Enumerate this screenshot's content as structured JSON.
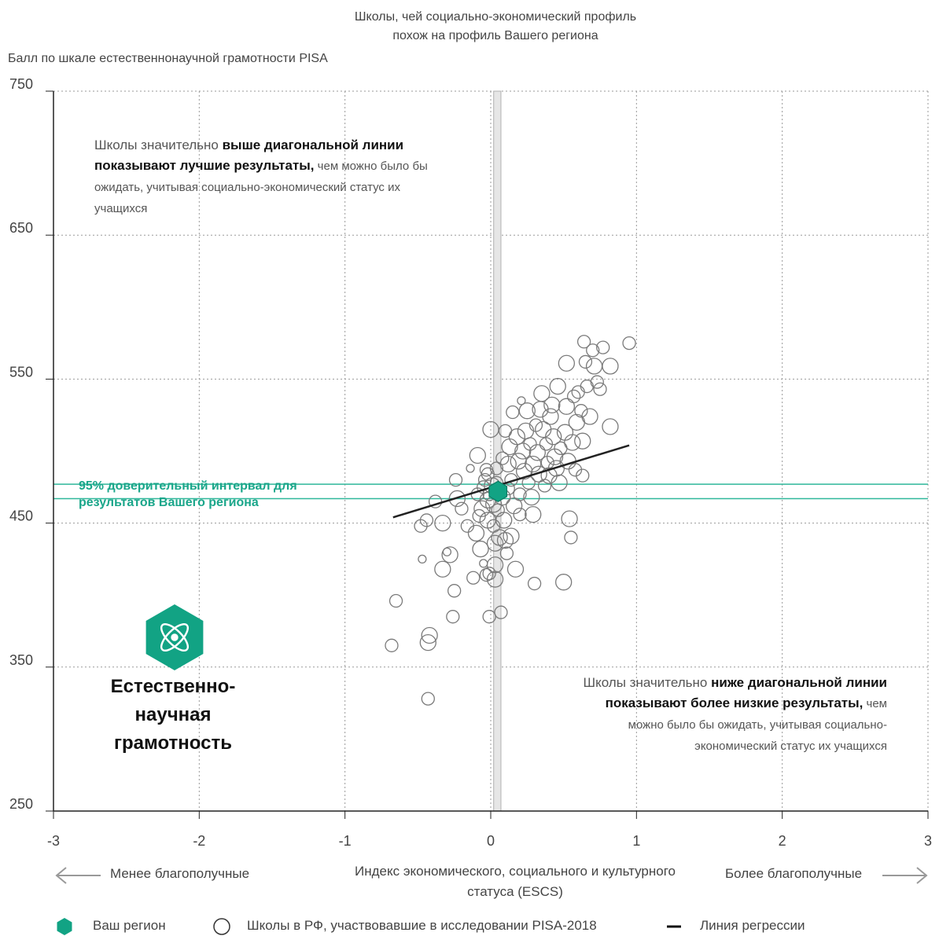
{
  "header": {
    "title_line1": "Школы, чей социально-экономический профиль",
    "title_line2": "похож на профиль Вашего региона"
  },
  "annotations": {
    "above_normal": "Школы значительно ",
    "above_bold": "выше диагональной линии показывают лучшие результаты,",
    "above_rest": " чем можно было бы ожидать, учитывая социально-экономический статус их учащихся",
    "below_normal": "Школы значительно ",
    "below_bold": "ниже диагональной линии показывают более низкие результаты,",
    "below_rest": " чем можно было бы ожидать, учитывая социально-экономический статус их учащихся",
    "ci_line1": "95% доверительный интервал для",
    "ci_line2": "результатов Вашего региона",
    "domain_line1": "Естественно-",
    "domain_line2": "научная",
    "domain_line3": "грамотность",
    "less_label": "Менее благополучные",
    "more_label": "Более благополучные"
  },
  "legend": {
    "region": "Ваш регион",
    "schools": "Школы в РФ, участвовавшие в исследовании PISA-2018",
    "regression": "Линия регрессии"
  },
  "colors": {
    "region": "#12a384",
    "ci_band": "#2fb79a",
    "schools": "#7a7a7a",
    "regression": "#222222"
  },
  "icons": {
    "domain_badge": "atom-icon",
    "arrow_left": "arrow-left-icon",
    "arrow_right": "arrow-right-icon"
  },
  "chart_data": {
    "type": "scatter",
    "xlabel": "Индекс экономического, социального и культурного статуса (ESCS)",
    "ylabel": "Балл по шкале естественнонаучной грамотности PISA",
    "xlim": [
      -3,
      3
    ],
    "ylim": [
      250,
      750
    ],
    "x_ticks": [
      -3,
      -2,
      -1,
      0,
      1,
      2,
      3
    ],
    "y_ticks": [
      250,
      350,
      450,
      550,
      650,
      750
    ],
    "grid": true,
    "region_point": {
      "x": 0.05,
      "y": 472,
      "ci": [
        467,
        477
      ]
    },
    "region_escs_band": [
      0.02,
      0.07
    ],
    "regression_line": {
      "x": [
        -0.67,
        0.95
      ],
      "y": [
        454,
        504
      ]
    },
    "schools": [
      {
        "x": -0.68,
        "y": 365,
        "s": 2
      },
      {
        "x": -0.65,
        "y": 396,
        "s": 2
      },
      {
        "x": -0.43,
        "y": 328,
        "s": 2
      },
      {
        "x": -0.42,
        "y": 372,
        "s": 3
      },
      {
        "x": -0.43,
        "y": 367,
        "s": 3
      },
      {
        "x": -0.47,
        "y": 425,
        "s": 1
      },
      {
        "x": -0.48,
        "y": 448,
        "s": 2
      },
      {
        "x": -0.44,
        "y": 452,
        "s": 2
      },
      {
        "x": -0.38,
        "y": 465,
        "s": 2
      },
      {
        "x": -0.33,
        "y": 450,
        "s": 3
      },
      {
        "x": -0.3,
        "y": 430,
        "s": 1
      },
      {
        "x": -0.33,
        "y": 418,
        "s": 3
      },
      {
        "x": -0.28,
        "y": 428,
        "s": 3
      },
      {
        "x": -0.26,
        "y": 385,
        "s": 2
      },
      {
        "x": -0.25,
        "y": 403,
        "s": 2
      },
      {
        "x": -0.23,
        "y": 467,
        "s": 3
      },
      {
        "x": -0.2,
        "y": 460,
        "s": 2
      },
      {
        "x": -0.24,
        "y": 480,
        "s": 2
      },
      {
        "x": -0.16,
        "y": 448,
        "s": 2
      },
      {
        "x": -0.14,
        "y": 488,
        "s": 1
      },
      {
        "x": -0.12,
        "y": 412,
        "s": 2
      },
      {
        "x": -0.1,
        "y": 443,
        "s": 3
      },
      {
        "x": -0.09,
        "y": 470,
        "s": 2
      },
      {
        "x": -0.08,
        "y": 455,
        "s": 2
      },
      {
        "x": -0.07,
        "y": 432,
        "s": 3
      },
      {
        "x": -0.06,
        "y": 460,
        "s": 3
      },
      {
        "x": -0.05,
        "y": 475,
        "s": 2
      },
      {
        "x": -0.04,
        "y": 480,
        "s": 2
      },
      {
        "x": -0.09,
        "y": 497,
        "s": 3
      },
      {
        "x": -0.05,
        "y": 422,
        "s": 1
      },
      {
        "x": -0.03,
        "y": 414,
        "s": 2
      },
      {
        "x": -0.02,
        "y": 466,
        "s": 3
      },
      {
        "x": -0.02,
        "y": 452,
        "s": 3
      },
      {
        "x": -0.01,
        "y": 470,
        "s": 2
      },
      {
        "x": -0.01,
        "y": 385,
        "s": 2
      },
      {
        "x": -0.01,
        "y": 415,
        "s": 2
      },
      {
        "x": -0.03,
        "y": 487,
        "s": 2
      },
      {
        "x": -0.02,
        "y": 484,
        "s": 2
      },
      {
        "x": 0.0,
        "y": 515,
        "s": 3
      },
      {
        "x": 0.01,
        "y": 476,
        "s": 3
      },
      {
        "x": 0.02,
        "y": 463,
        "s": 3
      },
      {
        "x": 0.02,
        "y": 448,
        "s": 2
      },
      {
        "x": 0.03,
        "y": 436,
        "s": 3
      },
      {
        "x": 0.03,
        "y": 421,
        "s": 3
      },
      {
        "x": 0.03,
        "y": 411,
        "s": 3
      },
      {
        "x": 0.04,
        "y": 478,
        "s": 2
      },
      {
        "x": 0.04,
        "y": 488,
        "s": 2
      },
      {
        "x": 0.05,
        "y": 459,
        "s": 2
      },
      {
        "x": 0.06,
        "y": 440,
        "s": 3
      },
      {
        "x": 0.07,
        "y": 388,
        "s": 2
      },
      {
        "x": 0.08,
        "y": 495,
        "s": 2
      },
      {
        "x": 0.08,
        "y": 468,
        "s": 3
      },
      {
        "x": 0.09,
        "y": 452,
        "s": 3
      },
      {
        "x": 0.1,
        "y": 514,
        "s": 2
      },
      {
        "x": 0.1,
        "y": 438,
        "s": 3
      },
      {
        "x": 0.11,
        "y": 429,
        "s": 2
      },
      {
        "x": 0.12,
        "y": 491,
        "s": 3
      },
      {
        "x": 0.12,
        "y": 474,
        "s": 2
      },
      {
        "x": 0.13,
        "y": 503,
        "s": 3
      },
      {
        "x": 0.14,
        "y": 480,
        "s": 2
      },
      {
        "x": 0.14,
        "y": 441,
        "s": 3
      },
      {
        "x": 0.15,
        "y": 527,
        "s": 2
      },
      {
        "x": 0.16,
        "y": 462,
        "s": 3
      },
      {
        "x": 0.17,
        "y": 418,
        "s": 3
      },
      {
        "x": 0.18,
        "y": 510,
        "s": 3
      },
      {
        "x": 0.19,
        "y": 493,
        "s": 3
      },
      {
        "x": 0.2,
        "y": 470,
        "s": 2
      },
      {
        "x": 0.2,
        "y": 456,
        "s": 2
      },
      {
        "x": 0.21,
        "y": 535,
        "s": 1
      },
      {
        "x": 0.22,
        "y": 500,
        "s": 3
      },
      {
        "x": 0.23,
        "y": 486,
        "s": 3
      },
      {
        "x": 0.24,
        "y": 514,
        "s": 3
      },
      {
        "x": 0.25,
        "y": 528,
        "s": 3
      },
      {
        "x": 0.26,
        "y": 478,
        "s": 2
      },
      {
        "x": 0.27,
        "y": 505,
        "s": 2
      },
      {
        "x": 0.28,
        "y": 468,
        "s": 3
      },
      {
        "x": 0.29,
        "y": 491,
        "s": 3
      },
      {
        "x": 0.29,
        "y": 456,
        "s": 3
      },
      {
        "x": 0.3,
        "y": 408,
        "s": 2
      },
      {
        "x": 0.31,
        "y": 518,
        "s": 2
      },
      {
        "x": 0.32,
        "y": 499,
        "s": 3
      },
      {
        "x": 0.33,
        "y": 484,
        "s": 3
      },
      {
        "x": 0.34,
        "y": 529,
        "s": 3
      },
      {
        "x": 0.35,
        "y": 540,
        "s": 3
      },
      {
        "x": 0.36,
        "y": 515,
        "s": 3
      },
      {
        "x": 0.37,
        "y": 476,
        "s": 2
      },
      {
        "x": 0.38,
        "y": 505,
        "s": 2
      },
      {
        "x": 0.39,
        "y": 492,
        "s": 2
      },
      {
        "x": 0.4,
        "y": 483,
        "s": 3
      },
      {
        "x": 0.41,
        "y": 524,
        "s": 3
      },
      {
        "x": 0.42,
        "y": 532,
        "s": 3
      },
      {
        "x": 0.43,
        "y": 510,
        "s": 3
      },
      {
        "x": 0.44,
        "y": 496,
        "s": 3
      },
      {
        "x": 0.45,
        "y": 488,
        "s": 3
      },
      {
        "x": 0.46,
        "y": 545,
        "s": 3
      },
      {
        "x": 0.47,
        "y": 478,
        "s": 3
      },
      {
        "x": 0.48,
        "y": 502,
        "s": 2
      },
      {
        "x": 0.5,
        "y": 409,
        "s": 3
      },
      {
        "x": 0.51,
        "y": 513,
        "s": 3
      },
      {
        "x": 0.52,
        "y": 531,
        "s": 3
      },
      {
        "x": 0.53,
        "y": 493,
        "s": 3
      },
      {
        "x": 0.54,
        "y": 453,
        "s": 3
      },
      {
        "x": 0.55,
        "y": 440,
        "s": 2
      },
      {
        "x": 0.56,
        "y": 506,
        "s": 3
      },
      {
        "x": 0.57,
        "y": 538,
        "s": 2
      },
      {
        "x": 0.58,
        "y": 487,
        "s": 2
      },
      {
        "x": 0.59,
        "y": 520,
        "s": 3
      },
      {
        "x": 0.6,
        "y": 541,
        "s": 2
      },
      {
        "x": 0.62,
        "y": 528,
        "s": 2
      },
      {
        "x": 0.63,
        "y": 507,
        "s": 3
      },
      {
        "x": 0.64,
        "y": 576,
        "s": 2
      },
      {
        "x": 0.65,
        "y": 562,
        "s": 2
      },
      {
        "x": 0.66,
        "y": 545,
        "s": 2
      },
      {
        "x": 0.68,
        "y": 524,
        "s": 3
      },
      {
        "x": 0.7,
        "y": 570,
        "s": 2
      },
      {
        "x": 0.71,
        "y": 559,
        "s": 3
      },
      {
        "x": 0.73,
        "y": 548,
        "s": 2
      },
      {
        "x": 0.75,
        "y": 543,
        "s": 2
      },
      {
        "x": 0.77,
        "y": 572,
        "s": 2
      },
      {
        "x": 0.82,
        "y": 559,
        "s": 3
      },
      {
        "x": 0.82,
        "y": 517,
        "s": 3
      },
      {
        "x": 0.95,
        "y": 575,
        "s": 2
      },
      {
        "x": 0.52,
        "y": 561,
        "s": 3
      },
      {
        "x": 0.63,
        "y": 483,
        "s": 2
      }
    ]
  }
}
